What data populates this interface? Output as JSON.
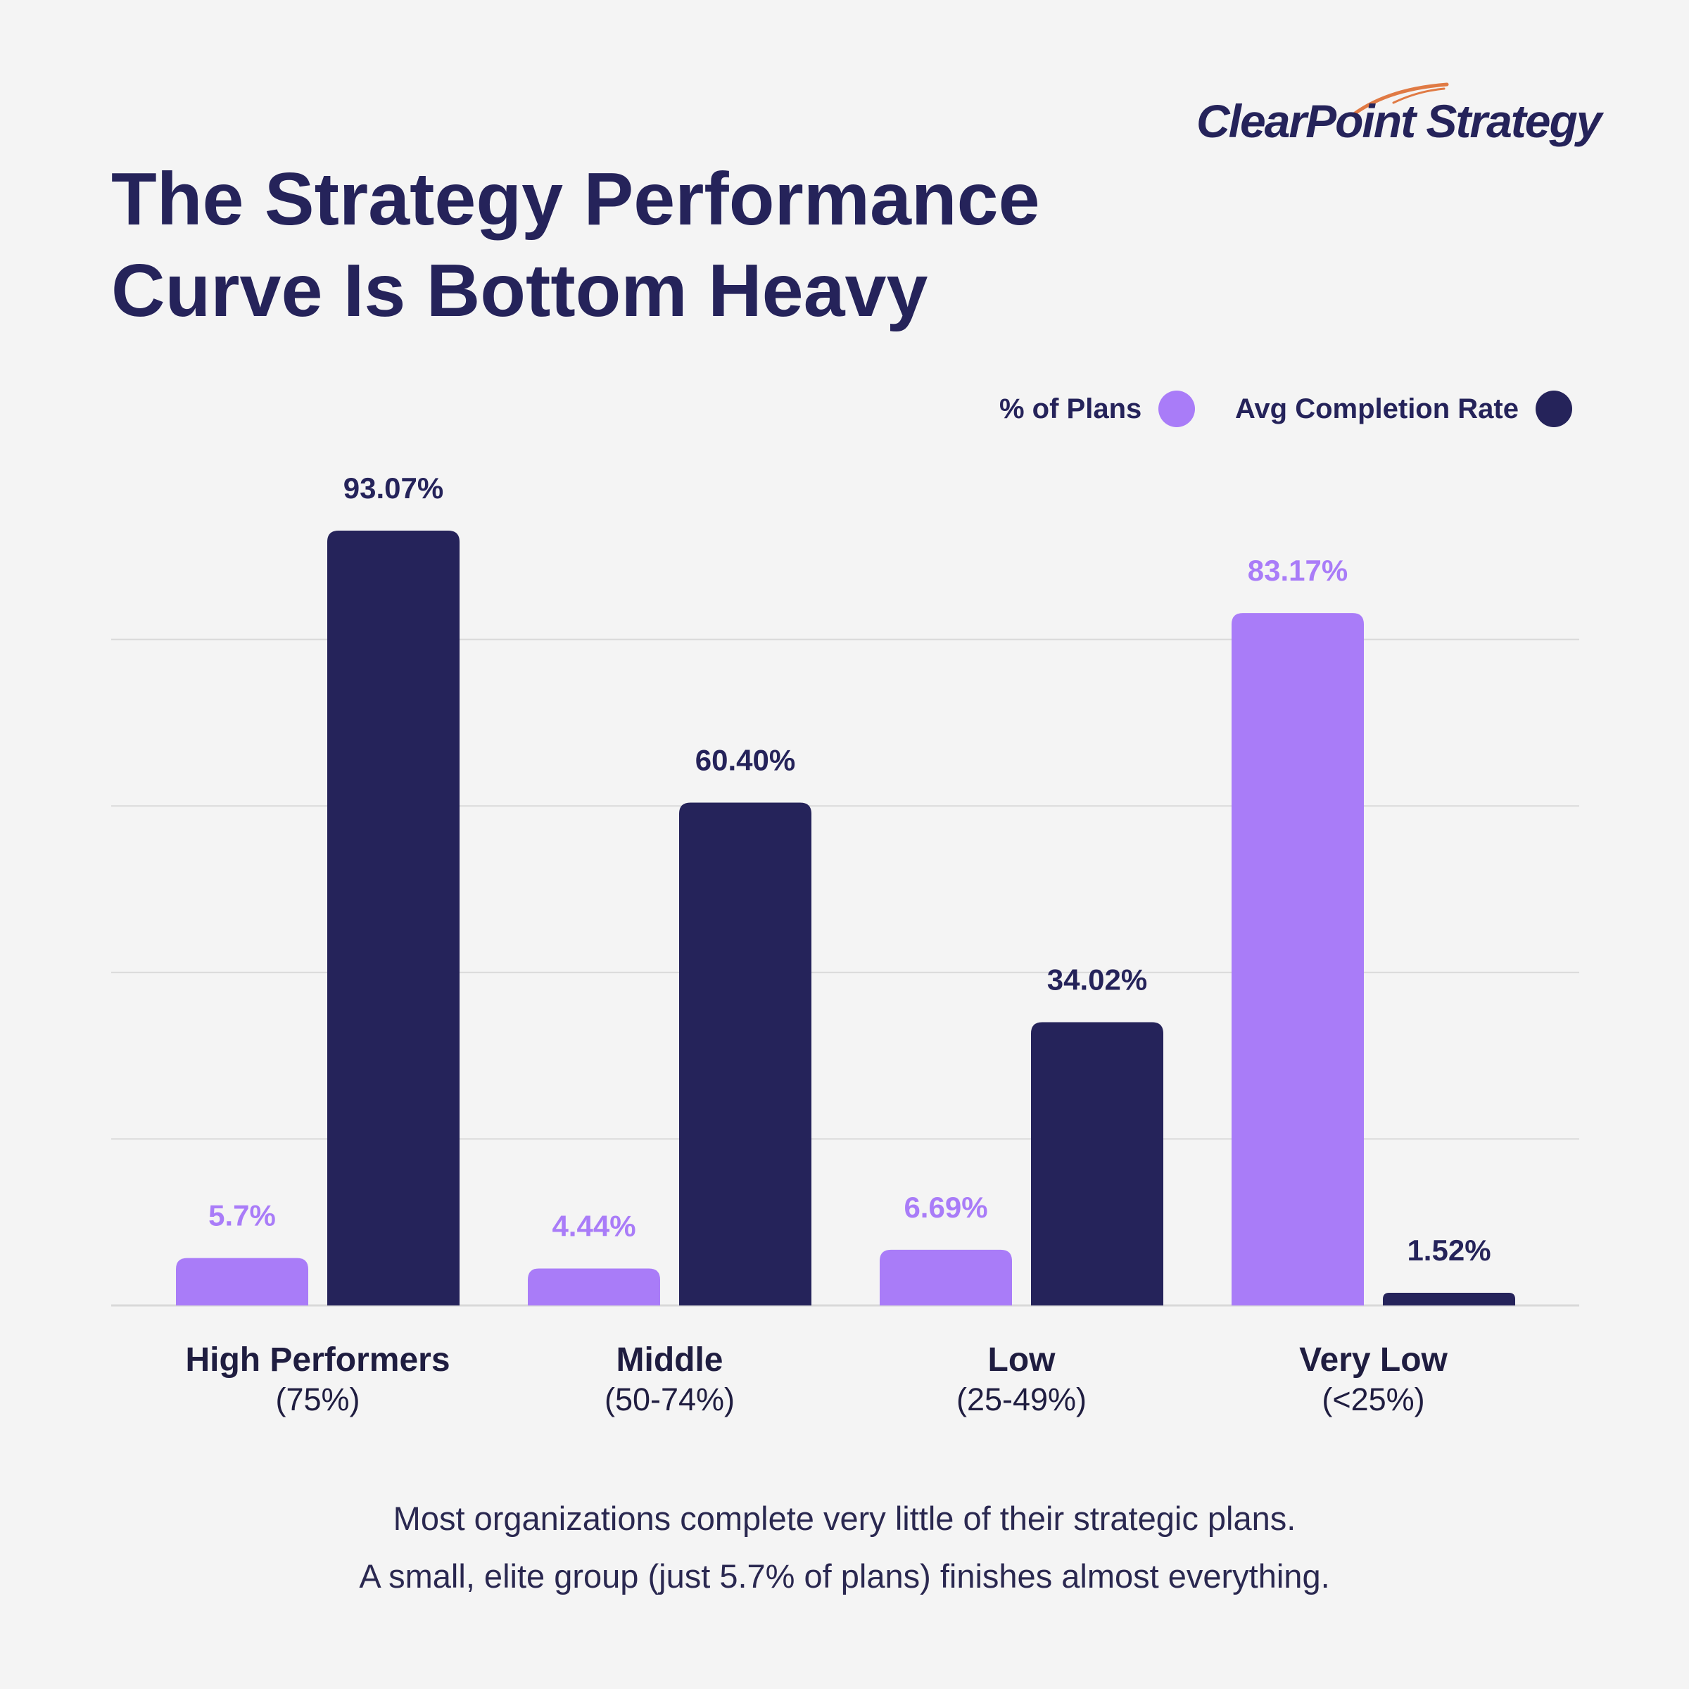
{
  "brand": {
    "name": "ClearPoint Strategy",
    "swoosh_color": "#e07a44"
  },
  "title": {
    "line1": "The Strategy Performance",
    "line2": "Curve Is Bottom Heavy"
  },
  "legend": {
    "plans_label": "% of Plans",
    "rate_label": "Avg Completion Rate"
  },
  "colors": {
    "plans": "#a97cf8",
    "rate": "#25235a",
    "grid": "#d9d9d9",
    "background": "#f4f4f4"
  },
  "chart_data": {
    "type": "bar",
    "categories": [
      "High Performers",
      "Middle",
      "Low",
      "Very Low"
    ],
    "category_ranges": [
      "(75%)",
      "(50-74%)",
      "(25-49%)",
      "(<25%)"
    ],
    "series": [
      {
        "name": "% of Plans",
        "values": [
          5.7,
          4.44,
          6.69,
          83.17
        ],
        "labels": [
          "5.7%",
          "4.44%",
          "6.69%",
          "83.17%"
        ]
      },
      {
        "name": "Avg Completion Rate",
        "values": [
          93.07,
          60.4,
          34.02,
          1.52
        ],
        "labels": [
          "93.07%",
          "60.40%",
          "34.02%",
          "1.52%"
        ]
      }
    ],
    "ylim": [
      0,
      100
    ],
    "grid": true,
    "legend_position": "top-right"
  },
  "caption": {
    "line1": "Most organizations complete very little of their strategic plans.",
    "line2": "A small, elite group (just 5.7% of plans) finishes almost everything."
  }
}
